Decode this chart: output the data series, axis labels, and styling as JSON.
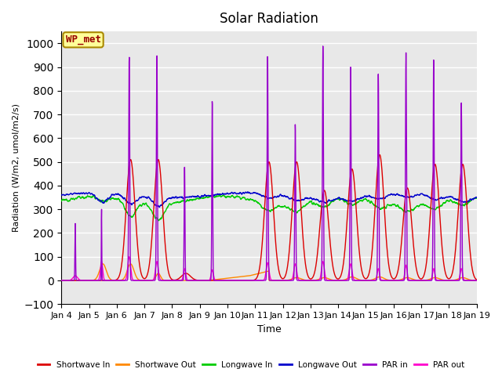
{
  "title": "Solar Radiation",
  "ylabel": "Radiation (W/m2, umol/m2/s)",
  "xlabel": "Time",
  "xlim_days": [
    4,
    19
  ],
  "ylim": [
    -100,
    1050
  ],
  "yticks": [
    -100,
    0,
    100,
    200,
    300,
    400,
    500,
    600,
    700,
    800,
    900,
    1000
  ],
  "xtick_labels": [
    "Jan 4",
    "Jan 5",
    "Jan 6",
    "Jan 7",
    "Jan 8",
    "Jan 9",
    "Jan 10",
    "Jan 11",
    "Jan 12",
    "Jan 13",
    "Jan 14",
    "Jan 15",
    "Jan 16",
    "Jan 17",
    "Jan 18",
    "Jan 19"
  ],
  "xtick_positions": [
    4,
    5,
    6,
    7,
    8,
    9,
    10,
    11,
    12,
    13,
    14,
    15,
    16,
    17,
    18,
    19
  ],
  "colors": {
    "shortwave_in": "#dd0000",
    "shortwave_out": "#ff8800",
    "longwave_in": "#00cc00",
    "longwave_out": "#0000cc",
    "par_in": "#9900cc",
    "par_out": "#ff00cc"
  },
  "legend_labels": [
    "Shortwave In",
    "Shortwave Out",
    "Longwave In",
    "Longwave Out",
    "PAR in",
    "PAR out"
  ],
  "background_color": "#e8e8e8",
  "annotation_text": "WP_met",
  "annotation_box_color": "#ffff99",
  "annotation_text_color": "#990000",
  "grid_color": "white",
  "line_width": 1.0,
  "figsize": [
    6.4,
    4.8
  ],
  "dpi": 100
}
